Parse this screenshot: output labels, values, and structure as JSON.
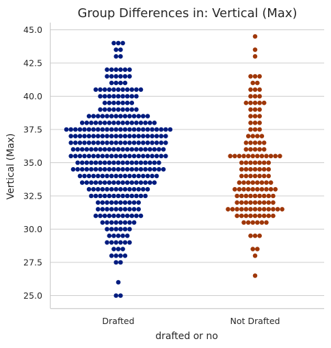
{
  "chart_data": {
    "type": "scatter",
    "style": "swarm",
    "title": "Group Differences in: Vertical (Max)",
    "xlabel": "drafted or no",
    "ylabel": "Vertical (Max)",
    "categories": [
      "Drafted",
      "Not Drafted"
    ],
    "ylim": [
      24.1,
      45.5
    ],
    "yticks": [
      25.0,
      27.5,
      30.0,
      32.5,
      35.0,
      37.5,
      40.0,
      42.5,
      45.0
    ],
    "ytick_labels": [
      "25.0",
      "27.5",
      "30.0",
      "32.5",
      "35.0",
      "37.5",
      "40.0",
      "42.5",
      "45.0"
    ],
    "grid": "horizontal",
    "legend": "none",
    "series": [
      {
        "category": "Drafted",
        "color": "#001c7f",
        "counts": [
          [
            25.0,
            2
          ],
          [
            26.0,
            1
          ],
          [
            27.5,
            2
          ],
          [
            28.0,
            4
          ],
          [
            28.5,
            3
          ],
          [
            29.0,
            6
          ],
          [
            29.5,
            5
          ],
          [
            30.0,
            6
          ],
          [
            30.5,
            8
          ],
          [
            31.0,
            11
          ],
          [
            31.5,
            10
          ],
          [
            32.0,
            10
          ],
          [
            32.5,
            13
          ],
          [
            33.0,
            14
          ],
          [
            33.5,
            17
          ],
          [
            34.0,
            18
          ],
          [
            34.5,
            21
          ],
          [
            35.0,
            19
          ],
          [
            35.5,
            22
          ],
          [
            36.0,
            21
          ],
          [
            36.5,
            22
          ],
          [
            37.0,
            22
          ],
          [
            37.5,
            24
          ],
          [
            38.0,
            17
          ],
          [
            38.5,
            14
          ],
          [
            39.0,
            9
          ],
          [
            39.5,
            7
          ],
          [
            40.0,
            9
          ],
          [
            40.5,
            11
          ],
          [
            41.0,
            4
          ],
          [
            41.5,
            6
          ],
          [
            42.0,
            6
          ],
          [
            43.0,
            2
          ],
          [
            43.5,
            2
          ],
          [
            44.0,
            3
          ]
        ]
      },
      {
        "category": "Not Drafted",
        "color": "#9f3709",
        "counts": [
          [
            26.5,
            1
          ],
          [
            28.0,
            1
          ],
          [
            28.5,
            2
          ],
          [
            29.5,
            3
          ],
          [
            30.5,
            6
          ],
          [
            31.0,
            9
          ],
          [
            31.5,
            13
          ],
          [
            32.0,
            9
          ],
          [
            32.5,
            9
          ],
          [
            33.0,
            10
          ],
          [
            33.5,
            8
          ],
          [
            34.0,
            7
          ],
          [
            34.5,
            7
          ],
          [
            35.0,
            7
          ],
          [
            35.5,
            12
          ],
          [
            36.0,
            5
          ],
          [
            36.5,
            5
          ],
          [
            37.0,
            4
          ],
          [
            37.5,
            3
          ],
          [
            38.0,
            3
          ],
          [
            38.5,
            3
          ],
          [
            39.0,
            3
          ],
          [
            39.5,
            5
          ],
          [
            40.0,
            3
          ],
          [
            40.5,
            3
          ],
          [
            41.0,
            2
          ],
          [
            41.5,
            3
          ],
          [
            43.0,
            1
          ],
          [
            43.5,
            1
          ],
          [
            44.5,
            1
          ]
        ]
      }
    ]
  }
}
